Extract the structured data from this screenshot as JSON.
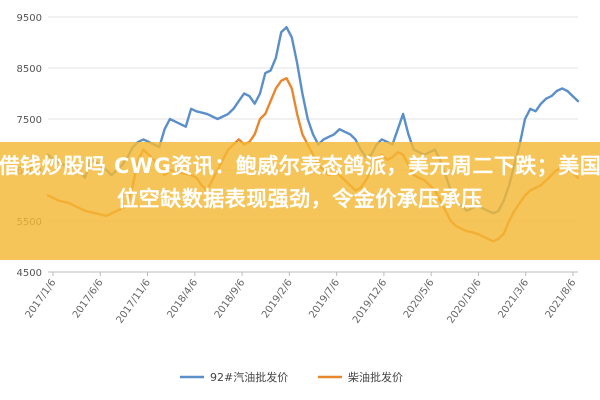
{
  "headline": "能借钱炒股吗 CWG资讯：鲍威尔表态鸽派，美元周二下跌；美国职位空缺数据表现强劲，令金价承压承压",
  "colors": {
    "banner": "#F4B834",
    "series_92": "#5B8FC9",
    "series_diesel": "#E8882E",
    "grid": "#E3E3E3",
    "axis": "#BBBBBB"
  },
  "chart_data": {
    "type": "line",
    "title": "",
    "xlabel": "",
    "ylabel": "",
    "ylim": [
      4500,
      9500
    ],
    "yticks": [
      4500,
      5500,
      6500,
      7500,
      8500,
      9500
    ],
    "ytick_labels": [
      "4500",
      "5500",
      "6500",
      "7500",
      "8500",
      "9500"
    ],
    "xtick_labels": [
      "2017/1/6",
      "2017/6/6",
      "2017/11/6",
      "2018/4/6",
      "2018/9/6",
      "2019/2/6",
      "2019/7/6",
      "2019/12/6",
      "2020/5/6",
      "2020/10/6",
      "2021/3/6",
      "2021/8/6"
    ],
    "x_index_range": [
      0,
      100
    ],
    "grid": "horizontal",
    "legend_position": "bottom",
    "series": [
      {
        "name": "92#汽油批发价",
        "color": "#5B8FC9",
        "points": [
          [
            0,
            6800
          ],
          [
            1,
            6700
          ],
          [
            2,
            6650
          ],
          [
            3,
            6600
          ],
          [
            5,
            6550
          ],
          [
            7,
            6350
          ],
          [
            8,
            6700
          ],
          [
            9,
            6650
          ],
          [
            11,
            6500
          ],
          [
            12,
            6400
          ],
          [
            13,
            6500
          ],
          [
            14,
            6600
          ],
          [
            15,
            6750
          ],
          [
            16,
            6950
          ],
          [
            17,
            7050
          ],
          [
            18,
            7100
          ],
          [
            20,
            7000
          ],
          [
            21,
            6950
          ],
          [
            22,
            7300
          ],
          [
            23,
            7500
          ],
          [
            24,
            7450
          ],
          [
            26,
            7350
          ],
          [
            27,
            7700
          ],
          [
            28,
            7650
          ],
          [
            30,
            7600
          ],
          [
            31,
            7550
          ],
          [
            32,
            7500
          ],
          [
            33,
            7550
          ],
          [
            34,
            7600
          ],
          [
            35,
            7700
          ],
          [
            36,
            7850
          ],
          [
            37,
            8000
          ],
          [
            38,
            7950
          ],
          [
            39,
            7800
          ],
          [
            40,
            8000
          ],
          [
            41,
            8400
          ],
          [
            42,
            8450
          ],
          [
            43,
            8700
          ],
          [
            44,
            9200
          ],
          [
            45,
            9300
          ],
          [
            46,
            9100
          ],
          [
            47,
            8600
          ],
          [
            48,
            8000
          ],
          [
            49,
            7500
          ],
          [
            50,
            7200
          ],
          [
            51,
            7000
          ],
          [
            52,
            7100
          ],
          [
            53,
            7150
          ],
          [
            54,
            7200
          ],
          [
            55,
            7300
          ],
          [
            56,
            7250
          ],
          [
            57,
            7200
          ],
          [
            58,
            7100
          ],
          [
            59,
            6900
          ],
          [
            60,
            6750
          ],
          [
            61,
            6800
          ],
          [
            62,
            7000
          ],
          [
            63,
            7100
          ],
          [
            64,
            7050
          ],
          [
            65,
            7000
          ],
          [
            66,
            7300
          ],
          [
            67,
            7600
          ],
          [
            68,
            7200
          ],
          [
            69,
            6900
          ],
          [
            70,
            6850
          ],
          [
            71,
            6800
          ],
          [
            72,
            6850
          ],
          [
            73,
            6900
          ],
          [
            74,
            6700
          ],
          [
            75,
            6400
          ],
          [
            76,
            6100
          ],
          [
            77,
            5900
          ],
          [
            78,
            5800
          ],
          [
            79,
            5700
          ],
          [
            80,
            5750
          ],
          [
            81,
            5800
          ],
          [
            82,
            5750
          ],
          [
            83,
            5700
          ],
          [
            84,
            5650
          ],
          [
            85,
            5700
          ],
          [
            86,
            5900
          ],
          [
            87,
            6200
          ],
          [
            88,
            6600
          ],
          [
            89,
            7000
          ],
          [
            90,
            7500
          ],
          [
            91,
            7700
          ],
          [
            92,
            7650
          ],
          [
            93,
            7800
          ],
          [
            94,
            7900
          ],
          [
            95,
            7950
          ],
          [
            96,
            8050
          ],
          [
            97,
            8100
          ],
          [
            98,
            8050
          ],
          [
            99,
            7950
          ],
          [
            100,
            7850
          ]
        ]
      },
      {
        "name": "柴油批发价",
        "color": "#E8882E",
        "points": [
          [
            0,
            6000
          ],
          [
            2,
            5900
          ],
          [
            4,
            5850
          ],
          [
            6,
            5750
          ],
          [
            7,
            5700
          ],
          [
            9,
            5650
          ],
          [
            11,
            5600
          ],
          [
            13,
            5700
          ],
          [
            15,
            5800
          ],
          [
            16,
            6200
          ],
          [
            17,
            6700
          ],
          [
            18,
            6900
          ],
          [
            19,
            6800
          ],
          [
            20,
            6700
          ],
          [
            21,
            6500
          ],
          [
            22,
            6400
          ],
          [
            23,
            6500
          ],
          [
            25,
            6450
          ],
          [
            27,
            6400
          ],
          [
            28,
            6350
          ],
          [
            29,
            6200
          ],
          [
            30,
            6100
          ],
          [
            31,
            6300
          ],
          [
            32,
            6500
          ],
          [
            33,
            6700
          ],
          [
            34,
            6900
          ],
          [
            35,
            7000
          ],
          [
            36,
            7100
          ],
          [
            37,
            7000
          ],
          [
            38,
            7050
          ],
          [
            39,
            7200
          ],
          [
            40,
            7500
          ],
          [
            41,
            7600
          ],
          [
            42,
            7850
          ],
          [
            43,
            8100
          ],
          [
            44,
            8250
          ],
          [
            45,
            8300
          ],
          [
            46,
            8100
          ],
          [
            47,
            7600
          ],
          [
            48,
            7200
          ],
          [
            49,
            7000
          ],
          [
            50,
            6800
          ],
          [
            51,
            6600
          ],
          [
            52,
            6500
          ],
          [
            53,
            6400
          ],
          [
            54,
            6450
          ],
          [
            55,
            6400
          ],
          [
            56,
            6300
          ],
          [
            57,
            6200
          ],
          [
            58,
            6100
          ],
          [
            59,
            6150
          ],
          [
            60,
            6300
          ],
          [
            61,
            6500
          ],
          [
            62,
            6700
          ],
          [
            63,
            6800
          ],
          [
            64,
            6700
          ],
          [
            65,
            6750
          ],
          [
            66,
            6850
          ],
          [
            67,
            6800
          ],
          [
            68,
            6600
          ],
          [
            69,
            6400
          ],
          [
            70,
            6350
          ],
          [
            71,
            6300
          ],
          [
            72,
            6200
          ],
          [
            73,
            6100
          ],
          [
            74,
            5900
          ],
          [
            75,
            5700
          ],
          [
            76,
            5500
          ],
          [
            77,
            5400
          ],
          [
            78,
            5350
          ],
          [
            79,
            5300
          ],
          [
            80,
            5280
          ],
          [
            81,
            5250
          ],
          [
            82,
            5200
          ],
          [
            83,
            5150
          ],
          [
            84,
            5100
          ],
          [
            85,
            5150
          ],
          [
            86,
            5250
          ],
          [
            87,
            5500
          ],
          [
            88,
            5700
          ],
          [
            89,
            5850
          ],
          [
            90,
            6000
          ],
          [
            91,
            6100
          ],
          [
            92,
            6150
          ],
          [
            93,
            6200
          ],
          [
            94,
            6300
          ],
          [
            95,
            6400
          ],
          [
            96,
            6500
          ],
          [
            97,
            6550
          ],
          [
            98,
            6500
          ],
          [
            99,
            6450
          ],
          [
            100,
            6350
          ]
        ]
      }
    ]
  }
}
